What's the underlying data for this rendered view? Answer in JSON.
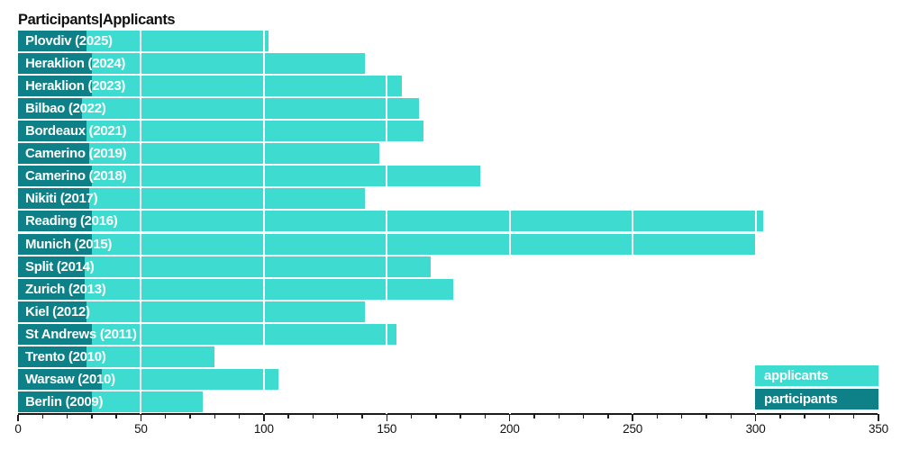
{
  "title": "Participants|Applicants",
  "colors": {
    "applicants": "#3EDCD0",
    "participants": "#0E8087",
    "gridline": "#FFFFFF",
    "axis": "#1A1A1A",
    "title_text": "#111111",
    "bar_label_text": "#FFFFFF",
    "background": "#FFFFFF"
  },
  "legend": {
    "position": "lower-right",
    "items": [
      {
        "label": "applicants",
        "color": "#3EDCD0"
      },
      {
        "label": "participants",
        "color": "#0E8087"
      }
    ]
  },
  "chart_data": {
    "type": "bar",
    "orientation": "horizontal",
    "bar_style": "overlapped",
    "title": "Participants|Applicants",
    "categories": [
      "Plovdiv (2025)",
      "Heraklion (2024)",
      "Heraklion (2023)",
      "Bilbao (2022)",
      "Bordeaux (2021)",
      "Camerino (2019)",
      "Camerino (2018)",
      "Nikiti (2017)",
      "Reading (2016)",
      "Munich (2015)",
      "Split (2014)",
      "Zurich (2013)",
      "Kiel (2012)",
      "St Andrews (2011)",
      "Trento (2010)",
      "Warsaw (2010)",
      "Berlin (2009)"
    ],
    "series": [
      {
        "name": "applicants",
        "color": "#3EDCD0",
        "values": [
          102,
          141,
          156,
          163,
          165,
          147,
          188,
          141,
          303,
          300,
          168,
          177,
          141,
          154,
          80,
          106,
          75
        ]
      },
      {
        "name": "participants",
        "color": "#0E8087",
        "values": [
          28,
          30,
          30,
          26,
          28,
          29,
          30,
          29,
          30,
          30,
          27,
          27,
          28,
          30,
          28,
          34,
          30
        ]
      }
    ],
    "xlim": [
      0,
      350
    ],
    "x_major_ticks": [
      0,
      50,
      100,
      150,
      200,
      250,
      300,
      350
    ],
    "x_minor_tick_step": 10,
    "gridlines": "vertical white lines at major ticks over bars",
    "legend_position": "lower right",
    "xlabel": "",
    "ylabel": ""
  }
}
